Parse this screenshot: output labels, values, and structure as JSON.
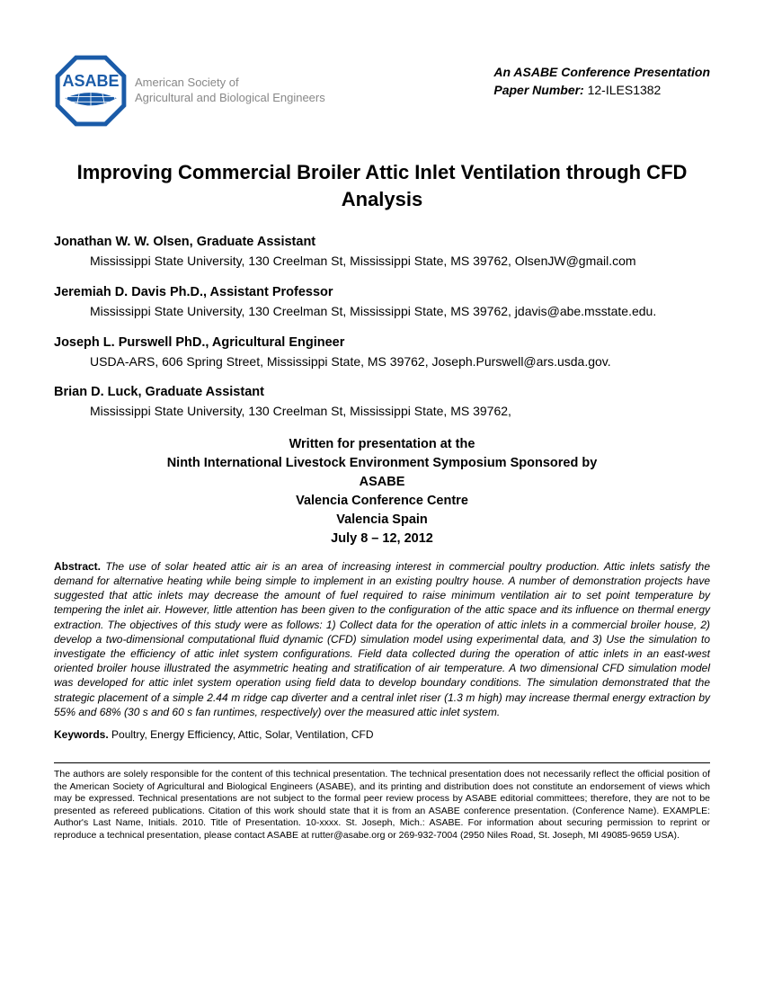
{
  "logo": {
    "acronym": "ASABE",
    "org_line1": "American Society of",
    "org_line2": "Agricultural and Biological Engineers",
    "color": "#1a5ba8"
  },
  "header": {
    "presentation_line": "An ASABE Conference Presentation",
    "paper_number_label": "Paper Number:",
    "paper_number": "12-ILES1382"
  },
  "title": "Improving Commercial Broiler Attic Inlet Ventilation through CFD Analysis",
  "authors": [
    {
      "name": "Jonathan W. W. Olsen, Graduate Assistant",
      "affil": "Mississippi State University, 130 Creelman St, Mississippi State, MS  39762, OlsenJW@gmail.com"
    },
    {
      "name": "Jeremiah D. Davis Ph.D., Assistant Professor",
      "affil": "Mississippi State University, 130 Creelman St, Mississippi State, MS  39762, jdavis@abe.msstate.edu."
    },
    {
      "name": "Joseph L. Purswell PhD., Agricultural Engineer",
      "affil": "USDA-ARS, 606 Spring Street, Mississippi State, MS  39762, Joseph.Purswell@ars.usda.gov."
    },
    {
      "name": "Brian D. Luck, Graduate Assistant",
      "affil": "Mississippi State University, 130 Creelman St, Mississippi State, MS  39762,"
    }
  ],
  "venue": {
    "l1": "Written for presentation at the",
    "l2": "Ninth International Livestock Environment Symposium Sponsored by",
    "l3": "ASABE",
    "l4": "Valencia Conference Centre",
    "l5": "Valencia Spain",
    "l6": "July 8 – 12, 2012"
  },
  "abstract": {
    "label": "Abstract.",
    "text": "The use of solar heated attic air is an area of increasing interest in commercial poultry production. Attic inlets satisfy the demand for alternative heating while being simple to implement in an existing poultry house.  A number of demonstration projects have suggested that attic inlets may decrease the amount of fuel required to raise minimum ventilation air to set point temperature by tempering the inlet air.  However, little attention has been given to the configuration of the attic space and its influence on thermal energy extraction. The objectives of this study were as follows: 1) Collect data for the operation of attic inlets in a commercial broiler house, 2) develop a two-dimensional computational fluid dynamic (CFD) simulation model using experimental data, and 3) Use the simulation to investigate the efficiency of attic inlet system configurations. Field data collected during the operation of attic inlets in an east-west oriented broiler house illustrated the asymmetric heating and stratification of air temperature.  A two dimensional CFD simulation model was developed for attic inlet system operation using field data to develop boundary conditions.  The simulation demonstrated that the strategic placement of a simple 2.44 m ridge cap diverter and a central inlet riser (1.3 m high) may increase thermal energy extraction by 55% and 68% (30 s and 60 s fan runtimes, respectively) over the measured attic inlet system."
  },
  "keywords": {
    "label": "Keywords.",
    "text": "Poultry, Energy Efficiency, Attic, Solar, Ventilation, CFD"
  },
  "footer": "The authors are solely responsible for the content of this technical presentation. The technical presentation does not necessarily reflect the official position of the American Society of Agricultural and Biological Engineers (ASABE), and its printing and distribution does not constitute an endorsement of views which may be expressed. Technical presentations are not subject to the formal peer review process by ASABE editorial committees; therefore, they are not to be presented as refereed publications. Citation of this work should state that it is from an ASABE conference presentation. (Conference Name). EXAMPLE: Author's Last Name, Initials. 2010. Title of Presentation. 10-xxxx. St. Joseph, Mich.: ASABE. For information about securing permission to reprint or reproduce a technical presentation, please contact ASABE at rutter@asabe.org or 269-932-7004 (2950 Niles Road, St. Joseph, MI 49085-9659 USA)."
}
